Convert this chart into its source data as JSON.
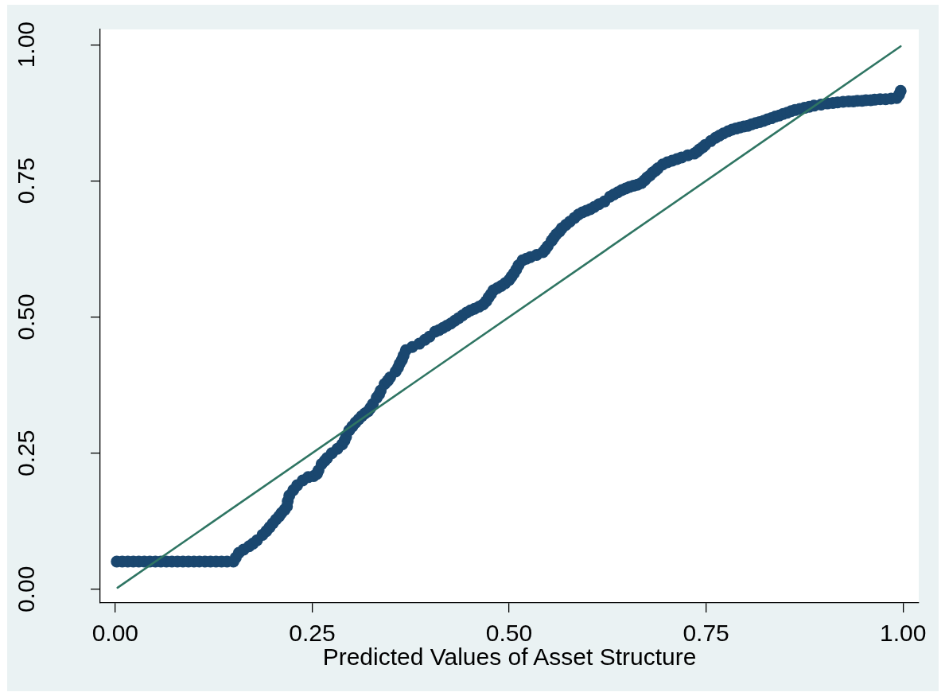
{
  "chart_data": {
    "type": "scatter",
    "xlabel": "Predicted Values of Asset Structure",
    "xlim": [
      -0.019,
      1.02
    ],
    "ylim": [
      -0.025,
      1.028
    ],
    "xticks": [
      {
        "value": 0,
        "label": "0.00"
      },
      {
        "value": 0.25,
        "label": "0.25"
      },
      {
        "value": 0.5,
        "label": "0.50"
      },
      {
        "value": 0.75,
        "label": "0.75"
      },
      {
        "value": 1,
        "label": "1.00"
      }
    ],
    "yticks": [
      {
        "value": 0,
        "label": "0.00"
      },
      {
        "value": 0.25,
        "label": "0.25"
      },
      {
        "value": 0.5,
        "label": "0.50"
      },
      {
        "value": 0.75,
        "label": "0.75"
      },
      {
        "value": 1,
        "label": "1.00"
      }
    ],
    "marker": "circle",
    "series": [
      {
        "color": "#1a476f",
        "x": [
          0.002,
          0.009,
          0.016,
          0.023,
          0.03,
          0.037,
          0.044,
          0.051,
          0.058,
          0.065,
          0.072,
          0.079,
          0.086,
          0.093,
          0.1,
          0.107,
          0.114,
          0.121,
          0.128,
          0.135,
          0.142,
          0.15,
          0.153,
          0.157,
          0.163,
          0.17,
          0.175,
          0.18,
          0.187,
          0.192,
          0.196,
          0.2,
          0.204,
          0.208,
          0.211,
          0.215,
          0.218,
          0.219,
          0.221,
          0.226,
          0.231,
          0.238,
          0.245,
          0.252,
          0.256,
          0.258,
          0.262,
          0.266,
          0.269,
          0.275,
          0.282,
          0.288,
          0.291,
          0.293,
          0.297,
          0.301,
          0.305,
          0.309,
          0.313,
          0.317,
          0.321,
          0.324,
          0.327,
          0.332,
          0.335,
          0.337,
          0.342,
          0.346,
          0.349,
          0.356,
          0.359,
          0.361,
          0.364,
          0.366,
          0.369,
          0.377,
          0.386,
          0.393,
          0.399,
          0.406,
          0.411,
          0.416,
          0.421,
          0.426,
          0.431,
          0.436,
          0.441,
          0.446,
          0.451,
          0.456,
          0.462,
          0.467,
          0.471,
          0.474,
          0.477,
          0.48,
          0.485,
          0.49,
          0.495,
          0.5,
          0.503,
          0.506,
          0.509,
          0.512,
          0.517,
          0.522,
          0.527,
          0.535,
          0.543,
          0.546,
          0.549,
          0.554,
          0.557,
          0.56,
          0.564,
          0.567,
          0.572,
          0.577,
          0.583,
          0.588,
          0.593,
          0.598,
          0.603,
          0.608,
          0.614,
          0.621,
          0.628,
          0.633,
          0.638,
          0.643,
          0.648,
          0.653,
          0.658,
          0.663,
          0.668,
          0.672,
          0.675,
          0.679,
          0.682,
          0.686,
          0.689,
          0.695,
          0.701,
          0.707,
          0.713,
          0.719,
          0.727,
          0.735,
          0.739,
          0.742,
          0.746,
          0.749,
          0.756,
          0.762,
          0.767,
          0.772,
          0.778,
          0.783,
          0.788,
          0.793,
          0.798,
          0.803,
          0.808,
          0.813,
          0.818,
          0.823,
          0.828,
          0.833,
          0.838,
          0.843,
          0.848,
          0.853,
          0.858,
          0.863,
          0.869,
          0.875,
          0.881,
          0.887,
          0.896,
          0.904,
          0.911,
          0.917,
          0.924,
          0.931,
          0.937,
          0.942,
          0.948,
          0.953,
          0.959,
          0.964,
          0.971,
          0.978,
          0.985,
          0.992,
          0.995,
          0.997
        ],
        "values": [
          0.051,
          0.051,
          0.051,
          0.051,
          0.051,
          0.051,
          0.051,
          0.051,
          0.051,
          0.051,
          0.051,
          0.051,
          0.051,
          0.051,
          0.051,
          0.051,
          0.051,
          0.051,
          0.051,
          0.051,
          0.051,
          0.051,
          0.058,
          0.067,
          0.073,
          0.079,
          0.084,
          0.09,
          0.1,
          0.107,
          0.114,
          0.121,
          0.128,
          0.134,
          0.14,
          0.146,
          0.152,
          0.162,
          0.172,
          0.182,
          0.191,
          0.2,
          0.206,
          0.208,
          0.212,
          0.218,
          0.23,
          0.236,
          0.241,
          0.25,
          0.258,
          0.266,
          0.273,
          0.28,
          0.292,
          0.299,
          0.306,
          0.312,
          0.318,
          0.323,
          0.327,
          0.333,
          0.34,
          0.352,
          0.358,
          0.365,
          0.377,
          0.383,
          0.389,
          0.4,
          0.407,
          0.414,
          0.421,
          0.429,
          0.439,
          0.445,
          0.451,
          0.458,
          0.464,
          0.473,
          0.476,
          0.48,
          0.484,
          0.488,
          0.493,
          0.498,
          0.503,
          0.508,
          0.512,
          0.515,
          0.519,
          0.523,
          0.529,
          0.536,
          0.542,
          0.549,
          0.553,
          0.557,
          0.562,
          0.568,
          0.574,
          0.58,
          0.587,
          0.595,
          0.604,
          0.607,
          0.61,
          0.614,
          0.619,
          0.624,
          0.63,
          0.64,
          0.646,
          0.652,
          0.657,
          0.663,
          0.669,
          0.675,
          0.682,
          0.688,
          0.692,
          0.695,
          0.698,
          0.702,
          0.707,
          0.712,
          0.721,
          0.725,
          0.729,
          0.733,
          0.736,
          0.739,
          0.741,
          0.743,
          0.746,
          0.751,
          0.756,
          0.76,
          0.765,
          0.769,
          0.773,
          0.78,
          0.784,
          0.787,
          0.79,
          0.793,
          0.797,
          0.8,
          0.804,
          0.808,
          0.812,
          0.816,
          0.823,
          0.829,
          0.833,
          0.837,
          0.841,
          0.844,
          0.846,
          0.848,
          0.85,
          0.851,
          0.854,
          0.856,
          0.858,
          0.86,
          0.863,
          0.865,
          0.868,
          0.87,
          0.873,
          0.875,
          0.878,
          0.88,
          0.882,
          0.884,
          0.886,
          0.888,
          0.89,
          0.892,
          0.893,
          0.894,
          0.895,
          0.896,
          0.896,
          0.897,
          0.897,
          0.898,
          0.898,
          0.899,
          0.9,
          0.9,
          0.901,
          0.902,
          0.908,
          0.915
        ]
      },
      {
        "type": "line",
        "color": "#2f7563",
        "marker": "none",
        "x": [
          0.003,
          0.997
        ],
        "values": [
          0.003,
          0.997
        ]
      }
    ]
  }
}
